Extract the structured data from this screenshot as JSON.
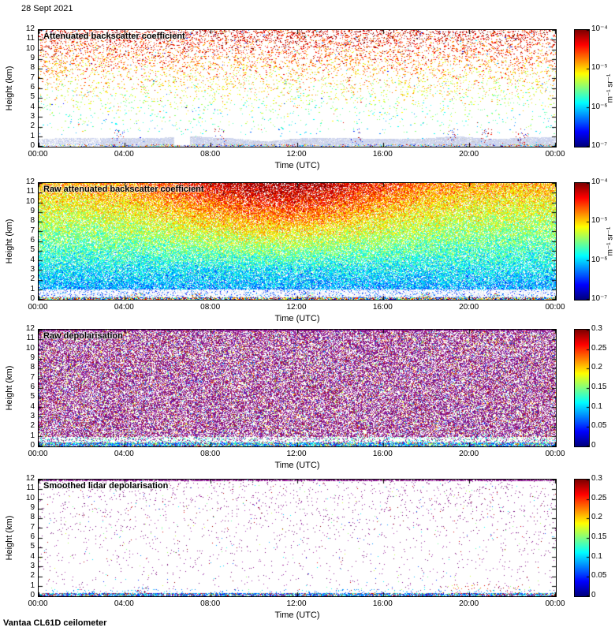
{
  "page": {
    "date_label": "28 Sept 2021",
    "footer_label": "Vantaa CL61D ceilometer",
    "background": "#ffffff",
    "text_color": "#000000"
  },
  "chart_data": [
    {
      "type": "heatmap",
      "title": "Attenuated backscatter coefficient",
      "xlabel": "Time (UTC)",
      "ylabel": "Height (km)",
      "x_ticks": [
        "00:00",
        "04:00",
        "08:00",
        "12:00",
        "16:00",
        "20:00",
        "00:00"
      ],
      "y_ticks": [
        "12",
        "11",
        "10",
        "9",
        "8",
        "7",
        "6",
        "5",
        "4",
        "3",
        "2",
        "1",
        "0"
      ],
      "ylim": [
        0,
        12
      ],
      "xlim_hours": [
        0,
        24
      ],
      "grid": false,
      "colorbar": {
        "colormap": "jet",
        "scale": "log",
        "range": [
          1e-07,
          0.0001
        ],
        "ticks": [
          "10⁻⁴",
          "10⁻⁵",
          "10⁻⁶",
          "10⁻⁷"
        ],
        "unit": "m⁻¹ sr⁻¹",
        "position": "right"
      },
      "description": "Sparse speckle noise whose amplitude and density grow with height (red/orange aloft, yellow-green mid-levels, sparse blue low); light lavender aerosol band below ~1 km with colorful speckle and red patches at the surface, brief gap near 06:30.",
      "pattern": {
        "kind": "backscatter_sparse",
        "seed": 11,
        "dots": 26000,
        "density_bottom": 0.06,
        "density_top": 0.85,
        "value_base": 0.33,
        "value_height_gain": 0.6,
        "value_noise": 0.16,
        "band_color": "#cfd6ef",
        "band_gaps": [
          [
            0.262,
            0.292
          ]
        ],
        "event_times": [
          0.155,
          0.35,
          0.615,
          0.8,
          0.865,
          0.935
        ]
      }
    },
    {
      "type": "heatmap",
      "title": "Raw attenuated backscatter coefficient",
      "xlabel": "Time (UTC)",
      "ylabel": "Height (km)",
      "x_ticks": [
        "00:00",
        "04:00",
        "08:00",
        "12:00",
        "16:00",
        "20:00",
        "00:00"
      ],
      "y_ticks": [
        "12",
        "11",
        "10",
        "9",
        "8",
        "7",
        "6",
        "5",
        "4",
        "3",
        "2",
        "1",
        "0"
      ],
      "ylim": [
        0,
        12
      ],
      "xlim_hours": [
        0,
        24
      ],
      "grid": false,
      "colorbar": {
        "colormap": "jet",
        "scale": "log",
        "range": [
          1e-07,
          0.0001
        ],
        "ticks": [
          "10⁻⁴",
          "10⁻⁵",
          "10⁻⁶",
          "10⁻⁷"
        ],
        "unit": "m⁻¹ sr⁻¹",
        "position": "right"
      },
      "description": "Dense speckle: blue at 1-4 km, green/yellow aloft, orange-red patches 8-12 km around 08:00-16:00 UTC; whitish surface band below ~1 km with blue speckle and a thin multicoloured ground line.",
      "pattern": {
        "kind": "backscatter_dense",
        "seed": 22,
        "coverage": 0.8,
        "value_base": 0.24,
        "value_height_gain": 0.46,
        "value_noise": 0.12,
        "day_bump": 0.3,
        "day_center": 0.47,
        "day_width": 0.23,
        "surface_km": 1.05,
        "event_times": [
          0.19,
          0.305,
          0.52,
          0.75,
          0.88
        ]
      }
    },
    {
      "type": "heatmap",
      "title": "Raw depolarisation",
      "xlabel": "Time (UTC)",
      "ylabel": "Height (km)",
      "x_ticks": [
        "00:00",
        "04:00",
        "08:00",
        "12:00",
        "16:00",
        "20:00",
        "00:00"
      ],
      "y_ticks": [
        "12",
        "11",
        "10",
        "9",
        "8",
        "7",
        "6",
        "5",
        "4",
        "3",
        "2",
        "1",
        "0"
      ],
      "ylim": [
        0,
        12
      ],
      "xlim_hours": [
        0,
        24
      ],
      "grid": false,
      "colorbar": {
        "colormap": "jet",
        "scale": "linear",
        "range": [
          0,
          0.3
        ],
        "ticks": [
          "0.3",
          "0.25",
          "0.2",
          "0.15",
          "0.1",
          "0.05",
          "0"
        ],
        "position": "right"
      },
      "description": "Very dense magenta/purple noise speckle over the whole domain with scattered green, blue, red and yellow dots; low-depolarisation blue-cyan/green band below ~0.4 km.",
      "pattern": {
        "kind": "depol_dense",
        "seed": 33,
        "coverage": 0.6,
        "magenta": [
          "#8a1489",
          "#9c23a3",
          "#7b0e7e",
          "#a433aa",
          "#701070"
        ],
        "band_km": 0.38
      }
    },
    {
      "type": "heatmap",
      "title": "Smoothed lidar depolarisation",
      "xlabel": "Time (UTC)",
      "ylabel": "Height (km)",
      "x_ticks": [
        "00:00",
        "04:00",
        "08:00",
        "12:00",
        "16:00",
        "20:00",
        "00:00"
      ],
      "y_ticks": [
        "12",
        "11",
        "10",
        "9",
        "8",
        "7",
        "6",
        "5",
        "4",
        "3",
        "2",
        "1",
        "0"
      ],
      "ylim": [
        0,
        12
      ],
      "xlim_hours": [
        0,
        24
      ],
      "grid": false,
      "colorbar": {
        "colormap": "jet",
        "scale": "linear",
        "range": [
          0,
          0.3
        ],
        "ticks": [
          "0.3",
          "0.25",
          "0.2",
          "0.15",
          "0.1",
          "0.05",
          "0"
        ],
        "position": "right"
      },
      "description": "Mostly clear panel with sparse magenta dots (slightly denser aloft), a dense purple line along 12 km, thin blue-cyan surface band with green segments and red/green patches near 19:00-22:00 and a small cluster near 04:40.",
      "pattern": {
        "kind": "depol_sparse",
        "seed": 44,
        "base_cov": 0.012,
        "top_gain": 0.032,
        "magenta": [
          "#8a1489",
          "#9c23a3",
          "#7b0e7e",
          "#a433aa",
          "#701070"
        ],
        "band_km": 0.3,
        "event_window": [
          0.78,
          0.94
        ],
        "cluster_time": 0.195
      }
    }
  ]
}
